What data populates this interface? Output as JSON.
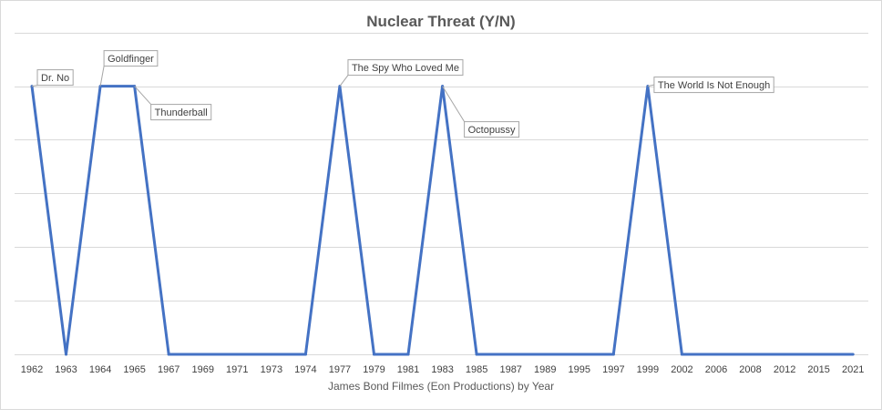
{
  "chart_data": {
    "type": "line",
    "title": "Nuclear Threat (Y/N)",
    "xlabel": "James Bond Filmes (Eon Productions) by Year",
    "ylabel": "",
    "categories": [
      "1962",
      "1963",
      "1964",
      "1965",
      "1967",
      "1969",
      "1971",
      "1973",
      "1974",
      "1977",
      "1979",
      "1981",
      "1983",
      "1985",
      "1987",
      "1989",
      "1995",
      "1997",
      "1999",
      "2002",
      "2006",
      "2008",
      "2012",
      "2015",
      "2021"
    ],
    "series": [
      {
        "values": [
          1,
          0,
          1,
          1,
          0,
          0,
          0,
          0,
          0,
          1,
          0,
          0,
          1,
          0,
          0,
          0,
          0,
          0,
          1,
          0,
          0,
          0,
          0,
          0,
          0
        ]
      }
    ],
    "ylim": [
      0,
      1.25
    ],
    "gridlines": [
      0,
      0.2,
      0.4,
      0.6,
      0.8,
      1.0,
      1.2
    ],
    "grid": true,
    "legend": "none",
    "line_color": "#4472c4",
    "annotations": [
      {
        "index": 0,
        "text": "Dr. No"
      },
      {
        "index": 2,
        "text": "Goldfinger"
      },
      {
        "index": 3,
        "text": "Thunderball"
      },
      {
        "index": 9,
        "text": "The Spy Who Loved Me"
      },
      {
        "index": 12,
        "text": "Octopussy"
      },
      {
        "index": 18,
        "text": "The World Is Not Enough"
      }
    ]
  }
}
